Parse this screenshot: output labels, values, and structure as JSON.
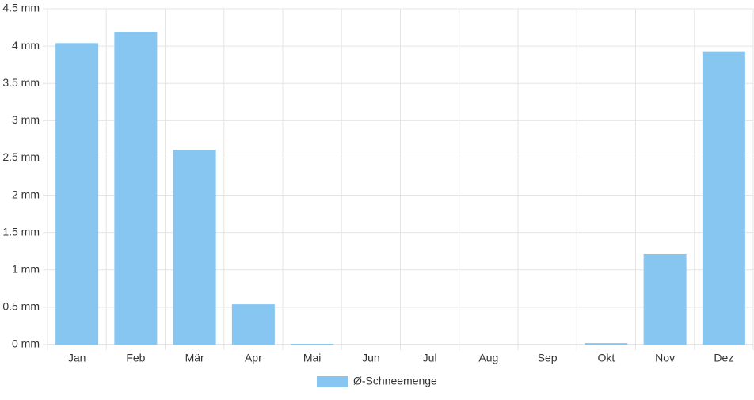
{
  "chart_data": {
    "type": "bar",
    "categories": [
      "Jan",
      "Feb",
      "Mär",
      "Apr",
      "Mai",
      "Jun",
      "Jul",
      "Aug",
      "Sep",
      "Okt",
      "Nov",
      "Dez"
    ],
    "series": [
      {
        "name": "Ø-Schneemenge",
        "color": "#88c6f2",
        "values": [
          4.04,
          4.19,
          2.61,
          0.54,
          0.01,
          0,
          0,
          0,
          0,
          0.02,
          1.21,
          3.92
        ]
      }
    ],
    "ylim": [
      0,
      4.5
    ],
    "yticks": [
      {
        "value": 0,
        "label": "0 mm"
      },
      {
        "value": 0.5,
        "label": "0.5 mm"
      },
      {
        "value": 1,
        "label": "1 mm"
      },
      {
        "value": 1.5,
        "label": "1.5 mm"
      },
      {
        "value": 2,
        "label": "2 mm"
      },
      {
        "value": 2.5,
        "label": "2.5 mm"
      },
      {
        "value": 3,
        "label": "3 mm"
      },
      {
        "value": 3.5,
        "label": "3.5 mm"
      },
      {
        "value": 4,
        "label": "4 mm"
      },
      {
        "value": 4.5,
        "label": "4.5 mm"
      }
    ],
    "grid": true,
    "legend": "bottom"
  }
}
